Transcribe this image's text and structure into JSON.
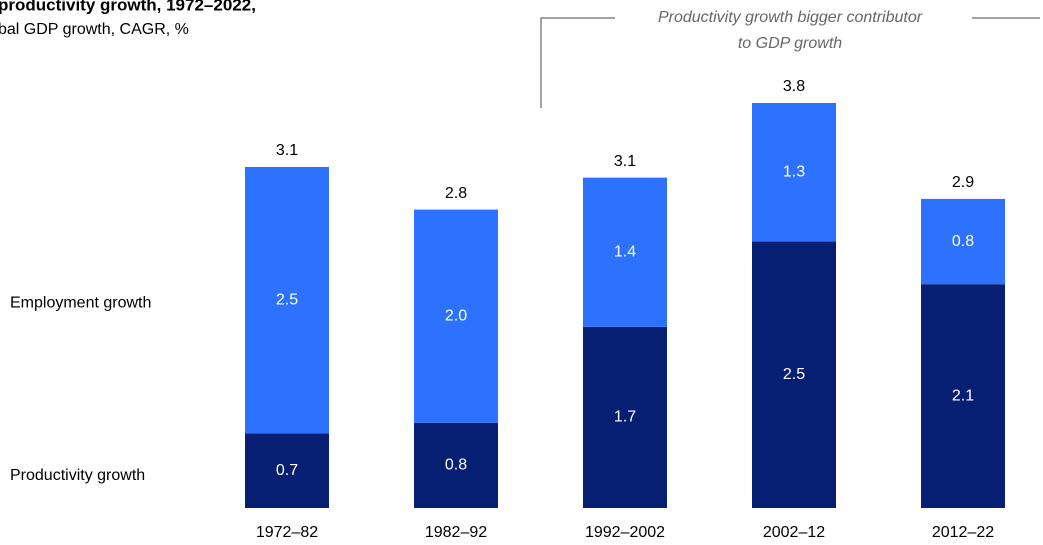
{
  "chart_data": {
    "type": "stacked-bar",
    "title": "productivity growth, 1972–2022,",
    "subtitle": "bal GDP growth, CAGR, %",
    "annotation": [
      "Productivity growth bigger contributor",
      "to GDP growth"
    ],
    "categories": [
      "1972–82",
      "1982–92",
      "1992–2002",
      "2002–12",
      "2012–22"
    ],
    "series": [
      {
        "name": "Productivity growth",
        "color": "#061f73",
        "values": [
          0.7,
          0.8,
          1.7,
          2.5,
          2.1
        ],
        "value_labels": [
          "0.7",
          "0.8",
          "1.7",
          "2.5",
          "2.1"
        ]
      },
      {
        "name": "Employment growth",
        "color": "#2c72ff",
        "values": [
          2.5,
          2.0,
          1.4,
          1.3,
          0.8
        ],
        "value_labels": [
          "2.5",
          "2.0",
          "1.4",
          "1.3",
          "0.8"
        ]
      }
    ],
    "totals": [
      "3.1",
      "2.8",
      "3.1",
      "3.8",
      "2.9"
    ]
  }
}
